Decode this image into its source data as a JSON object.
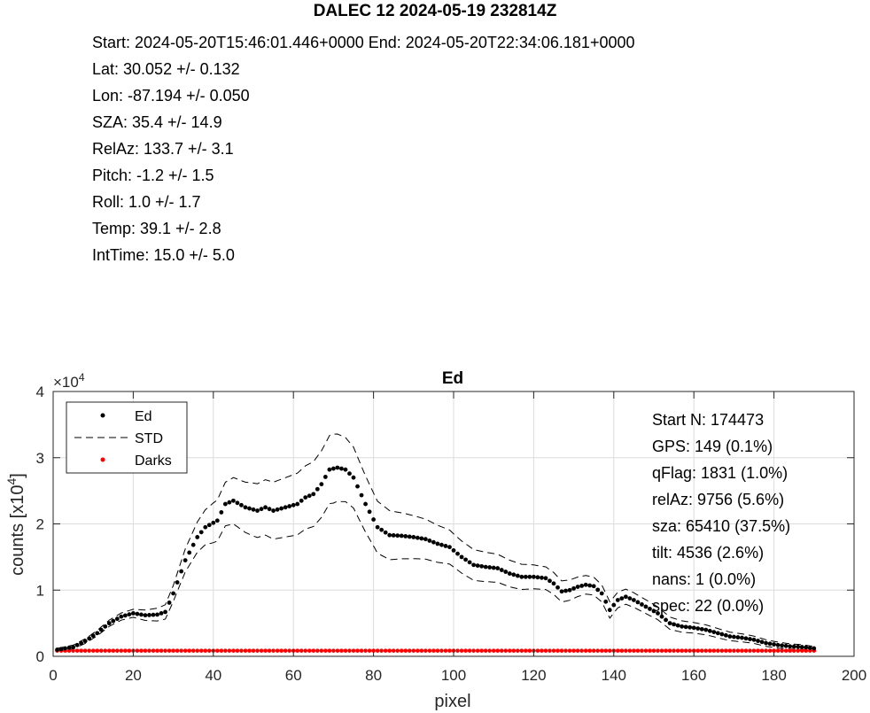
{
  "figure": {
    "title": "DALEC 12 2024-05-19 232814Z",
    "meta_lines": [
      "Start: 2024-05-20T15:46:01.446+0000 End: 2024-05-20T22:34:06.181+0000",
      "Lat: 30.052 +/- 0.132",
      "Lon: -87.194 +/- 0.050",
      "SZA: 35.4 +/- 14.9",
      "RelAz: 133.7 +/- 3.1",
      "Pitch: -1.2 +/- 1.5",
      "Roll: 1.0 +/- 1.7",
      "Temp: 39.1 +/- 2.8",
      "IntTime: 15.0 +/- 5.0"
    ]
  },
  "chart_data": {
    "type": "scatter",
    "title": "Ed",
    "xlabel": "pixel",
    "ylabel": "counts [x10",
    "ylabel_sup": "4",
    "ylabel_close": "]",
    "y_exponent_base": "×10",
    "y_exponent_power": "4",
    "xlim": [
      0,
      200
    ],
    "ylim": [
      0,
      4
    ],
    "xticks": [
      0,
      20,
      40,
      60,
      80,
      100,
      120,
      140,
      160,
      180,
      200
    ],
    "yticks": [
      0,
      1,
      2,
      3,
      4
    ],
    "grid": true,
    "legend_position": "top-left",
    "legend": [
      "Ed",
      "STD",
      "Darks"
    ],
    "colors": {
      "Ed": "#000000",
      "STD": "#000000",
      "Darks": "#ff0000"
    },
    "annotations": [
      "Start N: 174473",
      "GPS: 149 (0.1%)",
      "qFlag: 1831 (1.0%)",
      "relAz: 9756 (5.6%)",
      "sza: 65410 (37.5%)",
      "tilt: 4536 (2.6%)",
      "nans: 1 (0.0%)",
      "spec: 22 (0.0%)"
    ],
    "ed_keypoints": [
      [
        1,
        0.1
      ],
      [
        5,
        0.14
      ],
      [
        8,
        0.23
      ],
      [
        11,
        0.35
      ],
      [
        14,
        0.5
      ],
      [
        17,
        0.6
      ],
      [
        20,
        0.65
      ],
      [
        23,
        0.62
      ],
      [
        26,
        0.63
      ],
      [
        28,
        0.67
      ],
      [
        30,
        0.95
      ],
      [
        33,
        1.45
      ],
      [
        36,
        1.8
      ],
      [
        38,
        1.95
      ],
      [
        41,
        2.05
      ],
      [
        43,
        2.3
      ],
      [
        45,
        2.35
      ],
      [
        48,
        2.25
      ],
      [
        51,
        2.2
      ],
      [
        53,
        2.25
      ],
      [
        55,
        2.2
      ],
      [
        58,
        2.25
      ],
      [
        61,
        2.3
      ],
      [
        63,
        2.4
      ],
      [
        65,
        2.45
      ],
      [
        67,
        2.6
      ],
      [
        69,
        2.82
      ],
      [
        71,
        2.85
      ],
      [
        73,
        2.82
      ],
      [
        75,
        2.7
      ],
      [
        78,
        2.3
      ],
      [
        81,
        1.95
      ],
      [
        84,
        1.83
      ],
      [
        87,
        1.82
      ],
      [
        90,
        1.8
      ],
      [
        93,
        1.77
      ],
      [
        96,
        1.7
      ],
      [
        99,
        1.65
      ],
      [
        102,
        1.5
      ],
      [
        105,
        1.38
      ],
      [
        108,
        1.35
      ],
      [
        111,
        1.33
      ],
      [
        114,
        1.25
      ],
      [
        117,
        1.2
      ],
      [
        120,
        1.2
      ],
      [
        123,
        1.18
      ],
      [
        125,
        1.1
      ],
      [
        127,
        0.98
      ],
      [
        129,
        1.0
      ],
      [
        131,
        1.05
      ],
      [
        133,
        1.08
      ],
      [
        135,
        1.06
      ],
      [
        137,
        0.95
      ],
      [
        139,
        0.7
      ],
      [
        141,
        0.85
      ],
      [
        143,
        0.9
      ],
      [
        145,
        0.85
      ],
      [
        148,
        0.75
      ],
      [
        151,
        0.65
      ],
      [
        154,
        0.5
      ],
      [
        157,
        0.45
      ],
      [
        160,
        0.43
      ],
      [
        163,
        0.4
      ],
      [
        166,
        0.35
      ],
      [
        169,
        0.3
      ],
      [
        172,
        0.28
      ],
      [
        175,
        0.25
      ],
      [
        178,
        0.2
      ],
      [
        181,
        0.17
      ],
      [
        184,
        0.15
      ],
      [
        187,
        0.14
      ],
      [
        190,
        0.12
      ]
    ],
    "std_offset_keypoints": [
      [
        1,
        0.02
      ],
      [
        20,
        0.06
      ],
      [
        30,
        0.12
      ],
      [
        40,
        0.3
      ],
      [
        50,
        0.4
      ],
      [
        70,
        0.52
      ],
      [
        80,
        0.4
      ],
      [
        100,
        0.25
      ],
      [
        120,
        0.18
      ],
      [
        140,
        0.12
      ],
      [
        160,
        0.08
      ],
      [
        190,
        0.03
      ]
    ],
    "darks_value": 0.085,
    "pixel_range": [
      1,
      190
    ]
  }
}
